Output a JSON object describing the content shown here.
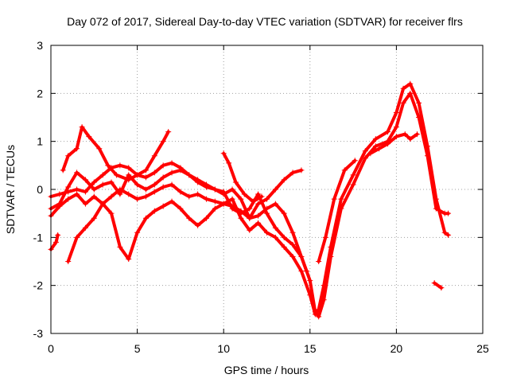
{
  "chart_data": {
    "type": "scatter",
    "title": "Day 072 of 2017, Sidereal Day-to-day VTEC variation (SDTVAR) for receiver flrs",
    "xlabel": "GPS time / hours",
    "ylabel": "SDTVAR / TECUs",
    "xlim": [
      0,
      25
    ],
    "ylim": [
      -3,
      3
    ],
    "xticks": [
      0,
      5,
      10,
      15,
      20,
      25
    ],
    "yticks": [
      -3,
      -2,
      -1,
      0,
      1,
      2,
      3
    ],
    "grid": true,
    "marker": "plus",
    "color": "#ff0000",
    "series": [
      {
        "name": "track-a",
        "points": [
          [
            0,
            -0.15
          ],
          [
            0.5,
            -0.1
          ],
          [
            1.0,
            -0.05
          ],
          [
            1.5,
            0.0
          ],
          [
            2.0,
            -0.05
          ],
          [
            2.5,
            0.15
          ],
          [
            3.0,
            0.3
          ],
          [
            3.5,
            0.45
          ],
          [
            4.0,
            0.5
          ],
          [
            4.5,
            0.45
          ],
          [
            5.0,
            0.3
          ],
          [
            5.5,
            0.25
          ],
          [
            6.0,
            0.35
          ],
          [
            6.5,
            0.5
          ],
          [
            7.0,
            0.55
          ],
          [
            7.5,
            0.45
          ],
          [
            8.0,
            0.3
          ],
          [
            8.5,
            0.2
          ],
          [
            9.0,
            0.1
          ],
          [
            9.5,
            0.0
          ],
          [
            10.0,
            -0.1
          ],
          [
            10.5,
            0.0
          ],
          [
            11.0,
            -0.2
          ],
          [
            11.5,
            -0.6
          ],
          [
            12.0,
            -0.3
          ],
          [
            12.5,
            -0.2
          ],
          [
            13.0,
            0.0
          ],
          [
            13.5,
            0.2
          ],
          [
            14.0,
            0.35
          ],
          [
            14.5,
            0.4
          ]
        ]
      },
      {
        "name": "track-b",
        "points": [
          [
            0.7,
            0.4
          ],
          [
            1.0,
            0.7
          ],
          [
            1.5,
            0.85
          ],
          [
            1.8,
            1.3
          ],
          [
            2.2,
            1.1
          ],
          [
            2.8,
            0.85
          ],
          [
            3.3,
            0.5
          ],
          [
            3.8,
            0.3
          ],
          [
            4.5,
            0.2
          ],
          [
            5.0,
            0.3
          ],
          [
            5.5,
            0.4
          ],
          [
            6.0,
            0.7
          ],
          [
            6.5,
            1.0
          ],
          [
            6.8,
            1.2
          ]
        ]
      },
      {
        "name": "track-c",
        "points": [
          [
            0,
            -0.55
          ],
          [
            0.5,
            -0.35
          ],
          [
            1.0,
            -0.2
          ],
          [
            1.5,
            -0.1
          ],
          [
            2.0,
            -0.3
          ],
          [
            2.5,
            -0.15
          ],
          [
            3.0,
            -0.3
          ],
          [
            3.5,
            -0.15
          ],
          [
            4.0,
            0.0
          ],
          [
            4.5,
            -0.1
          ],
          [
            5.0,
            -0.2
          ],
          [
            5.5,
            -0.15
          ],
          [
            6.0,
            -0.05
          ],
          [
            6.5,
            0.05
          ],
          [
            7.0,
            0.1
          ],
          [
            7.5,
            -0.05
          ],
          [
            8.0,
            -0.15
          ],
          [
            8.5,
            -0.1
          ],
          [
            9.0,
            -0.2
          ],
          [
            9.5,
            -0.25
          ],
          [
            10.0,
            -0.3
          ],
          [
            10.5,
            -0.35
          ],
          [
            11.0,
            -0.45
          ],
          [
            11.5,
            -0.6
          ],
          [
            12.0,
            -0.55
          ],
          [
            12.5,
            -0.4
          ],
          [
            13.0,
            -0.3
          ],
          [
            13.5,
            -0.5
          ],
          [
            14.0,
            -0.9
          ],
          [
            14.5,
            -1.4
          ],
          [
            14.8,
            -1.7
          ]
        ]
      },
      {
        "name": "track-d",
        "points": [
          [
            1.0,
            -1.5
          ],
          [
            1.5,
            -1.0
          ],
          [
            2.0,
            -0.8
          ],
          [
            2.5,
            -0.6
          ],
          [
            3.0,
            -0.3
          ],
          [
            3.5,
            -0.5
          ],
          [
            4.0,
            -1.2
          ],
          [
            4.5,
            -1.45
          ],
          [
            5.0,
            -0.9
          ],
          [
            5.5,
            -0.6
          ],
          [
            6.0,
            -0.45
          ],
          [
            6.5,
            -0.35
          ],
          [
            7.0,
            -0.25
          ],
          [
            7.5,
            -0.4
          ],
          [
            8.0,
            -0.6
          ],
          [
            8.5,
            -0.75
          ],
          [
            9.0,
            -0.6
          ],
          [
            9.5,
            -0.4
          ],
          [
            10.0,
            -0.3
          ],
          [
            10.5,
            -0.2
          ],
          [
            11.0,
            -0.6
          ],
          [
            11.5,
            -0.85
          ],
          [
            12.0,
            -0.7
          ],
          [
            12.5,
            -0.9
          ],
          [
            13.0,
            -1.0
          ],
          [
            13.5,
            -1.2
          ],
          [
            14.0,
            -1.4
          ],
          [
            14.5,
            -1.7
          ],
          [
            15.0,
            -2.2
          ],
          [
            15.3,
            -2.6
          ],
          [
            15.5,
            -2.5
          ],
          [
            15.8,
            -2.0
          ],
          [
            16.2,
            -1.2
          ],
          [
            16.8,
            -0.2
          ],
          [
            17.5,
            0.3
          ],
          [
            18.2,
            0.8
          ],
          [
            18.8,
            1.05
          ],
          [
            19.5,
            1.2
          ],
          [
            20.0,
            1.6
          ],
          [
            20.4,
            2.1
          ],
          [
            20.8,
            2.2
          ],
          [
            21.3,
            1.8
          ],
          [
            21.8,
            0.9
          ],
          [
            22.3,
            -0.2
          ],
          [
            22.8,
            -0.9
          ],
          [
            23.0,
            -0.95
          ]
        ]
      },
      {
        "name": "track-e",
        "points": [
          [
            0,
            -0.4
          ],
          [
            0.5,
            -0.3
          ],
          [
            1.0,
            0.05
          ],
          [
            1.5,
            0.35
          ],
          [
            2.0,
            0.2
          ],
          [
            2.5,
            0.0
          ],
          [
            3.0,
            0.1
          ],
          [
            3.5,
            0.15
          ],
          [
            4.0,
            -0.1
          ],
          [
            4.5,
            0.3
          ],
          [
            5.0,
            0.1
          ],
          [
            5.5,
            0.0
          ],
          [
            6.0,
            0.1
          ],
          [
            6.5,
            0.25
          ],
          [
            7.0,
            0.35
          ],
          [
            7.5,
            0.4
          ],
          [
            8.0,
            0.3
          ],
          [
            8.5,
            0.15
          ],
          [
            9.0,
            0.05
          ],
          [
            9.5,
            0.0
          ],
          [
            10.0,
            -0.05
          ],
          [
            10.5,
            -0.4
          ],
          [
            11.0,
            -0.5
          ],
          [
            11.5,
            -0.4
          ],
          [
            12.0,
            -0.1
          ],
          [
            12.5,
            -0.5
          ],
          [
            13.0,
            -0.8
          ],
          [
            13.5,
            -1.0
          ],
          [
            14.0,
            -1.15
          ],
          [
            14.5,
            -1.4
          ],
          [
            15.0,
            -1.9
          ],
          [
            15.3,
            -2.55
          ],
          [
            15.5,
            -2.65
          ],
          [
            15.8,
            -2.3
          ],
          [
            16.2,
            -1.4
          ],
          [
            16.8,
            -0.4
          ],
          [
            17.5,
            0.1
          ],
          [
            18.2,
            0.65
          ],
          [
            18.8,
            0.9
          ],
          [
            19.5,
            1.0
          ],
          [
            20.0,
            1.3
          ],
          [
            20.4,
            1.8
          ],
          [
            20.8,
            2.0
          ],
          [
            21.3,
            1.5
          ],
          [
            21.8,
            0.7
          ],
          [
            22.3,
            -0.4
          ],
          [
            22.8,
            -0.5
          ],
          [
            23.0,
            -0.5
          ]
        ]
      },
      {
        "name": "track-f",
        "points": [
          [
            10.0,
            0.75
          ],
          [
            10.3,
            0.55
          ],
          [
            10.7,
            0.15
          ],
          [
            11.2,
            -0.1
          ],
          [
            11.7,
            -0.25
          ],
          [
            12.2,
            -0.15
          ]
        ]
      },
      {
        "name": "track-g",
        "points": [
          [
            15.5,
            -1.5
          ],
          [
            15.9,
            -1.0
          ],
          [
            16.4,
            -0.2
          ],
          [
            17.0,
            0.4
          ],
          [
            17.6,
            0.6
          ]
        ]
      },
      {
        "name": "track-h",
        "points": [
          [
            18.5,
            0.75
          ],
          [
            19.0,
            0.85
          ],
          [
            19.5,
            0.95
          ],
          [
            20.0,
            1.1
          ],
          [
            20.5,
            1.15
          ],
          [
            20.8,
            1.05
          ],
          [
            21.2,
            1.15
          ]
        ]
      },
      {
        "name": "track-i",
        "points": [
          [
            0,
            -1.25
          ],
          [
            0.3,
            -1.1
          ],
          [
            0.4,
            -0.95
          ]
        ]
      },
      {
        "name": "track-j",
        "points": [
          [
            22.2,
            -1.95
          ],
          [
            22.6,
            -2.05
          ]
        ]
      }
    ]
  }
}
